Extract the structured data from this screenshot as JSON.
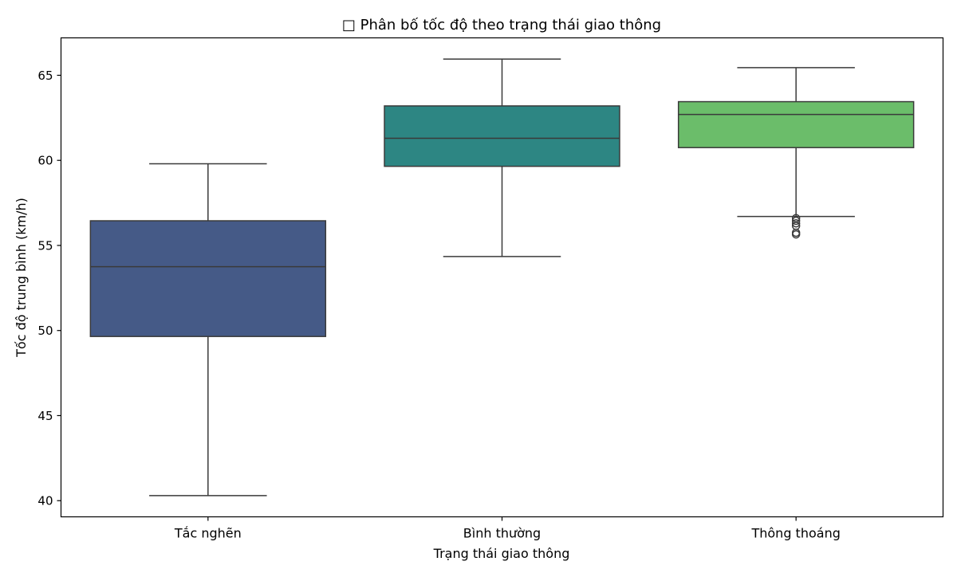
{
  "chart_data": {
    "type": "box",
    "title": "□ Phân bố tốc độ theo trạng thái giao thông",
    "xlabel": "Trạng thái giao thông",
    "ylabel": "Tốc độ trung bình (km/h)",
    "ylim": [
      39.05,
      67.2
    ],
    "yticks": [
      40,
      45,
      50,
      55,
      60,
      65
    ],
    "grid": false,
    "categories": [
      "Tắc nghẽn",
      "Bình thường",
      "Thông thoáng"
    ],
    "boxes": [
      {
        "category": "Tắc nghẽn",
        "whisker_low": 40.3,
        "q1": 49.65,
        "median": 53.75,
        "q3": 56.45,
        "whisker_high": 59.8,
        "outliers": [],
        "color": "#455a87"
      },
      {
        "category": "Bình thường",
        "whisker_low": 54.35,
        "q1": 59.65,
        "median": 61.3,
        "q3": 63.2,
        "whisker_high": 65.95,
        "outliers": [],
        "color": "#2d8683"
      },
      {
        "category": "Thông thoáng",
        "whisker_low": 56.7,
        "q1": 60.75,
        "median": 62.7,
        "q3": 63.45,
        "whisker_high": 65.45,
        "outliers": [
          56.6,
          56.45,
          56.3,
          56.15,
          55.75,
          55.65
        ],
        "color": "#6bbd6a"
      }
    ]
  }
}
